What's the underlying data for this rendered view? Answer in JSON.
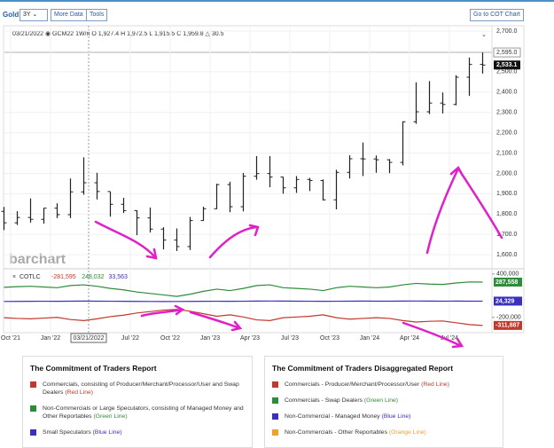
{
  "toolbar": {
    "symbol": "Gold",
    "period": "3Y",
    "more": "More Data",
    "tools": "Tools",
    "cot": "Go to COT Chart"
  },
  "chart_data": [
    {
      "type": "ohlc",
      "info": "03/21/2022 ◉ GCM22 1W/n O 1,927.4 H 1,972.5 L 1,915.5 C 1,959.8 △ 30.5",
      "watermark": "barchart",
      "color": "#222222",
      "open": [
        1813,
        1757,
        1783,
        1774,
        1829,
        1797,
        1909,
        1954,
        1911,
        1848,
        1817,
        1781,
        1726,
        1672,
        1640,
        1768,
        1826,
        1945,
        1836,
        1986,
        1999,
        1982,
        1929,
        1970,
        1965,
        1870,
        2005,
        2072,
        2071,
        2067,
        2054,
        2254,
        2303,
        2346,
        2339,
        2473,
        2536
      ],
      "high": [
        1835,
        1814,
        1877,
        1830,
        1853,
        1975,
        2079,
        2003,
        1910,
        1880,
        1819,
        1832,
        1735,
        1729,
        1786,
        1836,
        1949,
        1959,
        2002,
        2085,
        2085,
        1983,
        1987,
        1978,
        1970,
        2018,
        2089,
        2152,
        2088,
        2070,
        2256,
        2448,
        2454,
        2398,
        2483,
        2570,
        2595
      ],
      "low": [
        1721,
        1746,
        1758,
        1753,
        1780,
        1780,
        1895,
        1872,
        1787,
        1805,
        1696,
        1709,
        1626,
        1618,
        1623,
        1766,
        1824,
        1809,
        1813,
        1969,
        1932,
        1900,
        1904,
        1913,
        1866,
        1823,
        1975,
        1987,
        2003,
        2001,
        2039,
        2244,
        2292,
        2295,
        2335,
        2381,
        2491
      ],
      "close": [
        1757,
        1783,
        1774,
        1829,
        1797,
        1909,
        1954,
        1911,
        1848,
        1817,
        1781,
        1726,
        1672,
        1640,
        1768,
        1826,
        1945,
        1836,
        1986,
        1999,
        1982,
        1929,
        1970,
        1965,
        1870,
        2005,
        2072,
        2071,
        2067,
        2054,
        2254,
        2303,
        2346,
        2339,
        2473,
        2536,
        2533.1
      ],
      "ylim": [
        1535,
        2722
      ],
      "yticks": [
        {
          "value": 1600,
          "label": "1,600.0"
        },
        {
          "value": 1700,
          "label": "1,700.0"
        },
        {
          "value": 1800,
          "label": "1,800.0"
        },
        {
          "value": 1900,
          "label": "1,900.0"
        },
        {
          "value": 2000,
          "label": "2,000.0"
        },
        {
          "value": 2100,
          "label": "2,100.0"
        },
        {
          "value": 2200,
          "label": "2,200.0"
        },
        {
          "value": 2300,
          "label": "2,300.0"
        },
        {
          "value": 2400,
          "label": "2,400.0"
        },
        {
          "value": 2500,
          "label": "2,500.0"
        },
        {
          "value": 2600,
          "label": "2,600.0"
        },
        {
          "value": 2700,
          "label": "2,700.0"
        }
      ],
      "grid": true,
      "high_marker": {
        "value": 2595,
        "label": "2,595.0"
      },
      "last_marker": {
        "value": 2533.1,
        "label": "2,533.1"
      }
    },
    {
      "type": "line",
      "info": "COTLC",
      "info_values": [
        {
          "text": "-281,595",
          "color": "#c0392b"
        },
        {
          "text": "248,032",
          "color": "#2e8b3a"
        },
        {
          "text": "33,563",
          "color": "#3b2fc0"
        }
      ],
      "categories": [
        null,
        "Oct '21",
        null,
        null,
        "Jan '22",
        null,
        null,
        null,
        null,
        null,
        "Jul '22",
        null,
        null,
        "Oct '22",
        null,
        null,
        "Jan '23",
        null,
        null,
        "Apr '23",
        null,
        null,
        "Jul '23",
        null,
        null,
        "Oct '23",
        null,
        null,
        "Jan '24",
        null,
        null,
        "Apr '24",
        null,
        null,
        "Jul '24",
        null,
        null
      ],
      "crosshair_label": "03/21/2022",
      "series": [
        {
          "name": "Non-Commercials",
          "color": "#2e8b3a",
          "values": [
            215000,
            225000,
            230000,
            220000,
            210000,
            240000,
            250000,
            230000,
            200000,
            180000,
            150000,
            130000,
            110000,
            90000,
            120000,
            160000,
            190000,
            170000,
            200000,
            240000,
            250000,
            210000,
            200000,
            190000,
            170000,
            210000,
            230000,
            220000,
            210000,
            220000,
            250000,
            270000,
            260000,
            255000,
            275000,
            290000,
            287558
          ],
          "end_label": "287,558"
        },
        {
          "name": "Small Speculators",
          "color": "#3b2fc0",
          "values": [
            20000,
            21000,
            22000,
            23000,
            22000,
            24000,
            25000,
            24000,
            23000,
            22000,
            21000,
            20000,
            19000,
            20000,
            21000,
            22000,
            23000,
            22000,
            23000,
            25000,
            26000,
            25000,
            24000,
            23000,
            22000,
            23000,
            24000,
            25000,
            24000,
            24000,
            25000,
            26000,
            25000,
            24000,
            25000,
            24000,
            24329
          ],
          "end_label": "24,329"
        },
        {
          "name": "Commercials",
          "color": "#c0392b",
          "values": [
            -205000,
            -215000,
            -220000,
            -210000,
            -200000,
            -230000,
            -245000,
            -220000,
            -190000,
            -170000,
            -140000,
            -120000,
            -100000,
            -90000,
            -115000,
            -150000,
            -185000,
            -165000,
            -195000,
            -235000,
            -245000,
            -205000,
            -195000,
            -185000,
            -165000,
            -205000,
            -225000,
            -215000,
            -205000,
            -215000,
            -245000,
            -265000,
            -255000,
            -250000,
            -275000,
            -300000,
            -311887
          ],
          "end_label": "-311,887"
        }
      ],
      "ylim": [
        -412000,
        447000
      ],
      "yticks": [
        {
          "value": -200000,
          "label": "-200,000"
        },
        {
          "value": 400000,
          "label": "400,000"
        }
      ]
    }
  ],
  "legends": [
    {
      "title": "The Commitment of Traders Report",
      "items": [
        {
          "text": "Commercials, consisting of Producer/Merchant/Processor/User and Swap Dealers",
          "line": "(Red Line)",
          "color": "#c0392b"
        },
        {
          "text": "Non-Commercials or Large Speculators, consisting of Managed Money and Other Reportables",
          "line": "(Green Line)",
          "color": "#2e8b3a"
        },
        {
          "text": "Small Speculators",
          "line": "(Blue Line)",
          "color": "#3b2fc0"
        }
      ]
    },
    {
      "title": "The Commitment of Traders Disaggregated Report",
      "items": [
        {
          "text": "Commercials - Producer/Merchant/Processor/User",
          "line": "(Red Line)",
          "color": "#c0392b"
        },
        {
          "text": "Commercials - Swap Dealers",
          "line": "(Green Line)",
          "color": "#2e8b3a"
        },
        {
          "text": "Non-Commercial - Managed Money",
          "line": "(Blue Line)",
          "color": "#3b2fc0"
        },
        {
          "text": "Non-Commercials - Other Reportables",
          "line": "(Orange Line)",
          "color": "#f0a030"
        }
      ]
    }
  ]
}
